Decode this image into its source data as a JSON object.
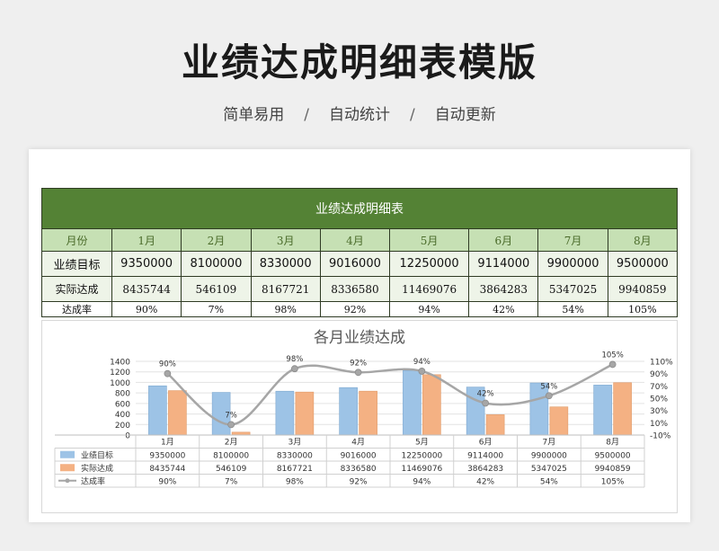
{
  "header": {
    "title": "业绩达成明细表模版",
    "features": [
      "简单易用",
      "自动统计",
      "自动更新"
    ],
    "separator": "/"
  },
  "table": {
    "title": "业绩达成明细表",
    "col_header_label": "月份",
    "months": [
      "1月",
      "2月",
      "3月",
      "4月",
      "5月",
      "6月",
      "7月",
      "8月"
    ],
    "rows": [
      {
        "label": "业绩目标",
        "values": [
          "9350000",
          "8100000",
          "8330000",
          "9016000",
          "12250000",
          "9114000",
          "9900000",
          "9500000"
        ]
      },
      {
        "label": "实际达成",
        "values": [
          "8435744",
          "546109",
          "8167721",
          "8336580",
          "11469076",
          "3864283",
          "5347025",
          "9940859"
        ]
      },
      {
        "label": "达成率",
        "values": [
          "90%",
          "7%",
          "98%",
          "92%",
          "94%",
          "42%",
          "54%",
          "105%"
        ]
      }
    ]
  },
  "chart_data": {
    "type": "bar",
    "title": "各月业绩达成",
    "categories": [
      "1月",
      "2月",
      "3月",
      "4月",
      "5月",
      "6月",
      "7月",
      "8月"
    ],
    "series": [
      {
        "name": "业绩目标",
        "type": "bar",
        "color": "#9dc3e6",
        "values": [
          935,
          810,
          833,
          901.6,
          1225,
          911.4,
          990,
          950
        ]
      },
      {
        "name": "实际达成",
        "type": "bar",
        "color": "#f4b183",
        "values": [
          843.6,
          54.6,
          816.8,
          833.7,
          1146.9,
          386.4,
          534.7,
          994.1
        ]
      },
      {
        "name": "达成率",
        "type": "line",
        "axis": "right",
        "color": "#a6a6a6",
        "values": [
          90,
          7,
          98,
          92,
          94,
          42,
          54,
          105
        ]
      }
    ],
    "y_left": {
      "min": 0,
      "max": 1400,
      "ticks": [
        "0",
        "200",
        "400",
        "600",
        "800",
        "1000",
        "1200",
        "1400"
      ]
    },
    "y_right": {
      "min": -10,
      "max": 110,
      "ticks": [
        "-10%",
        "10%",
        "30%",
        "50%",
        "70%",
        "90%",
        "110%"
      ]
    },
    "point_labels": [
      "90%",
      "7%",
      "98%",
      "92%",
      "94%",
      "42%",
      "54%",
      "105%"
    ],
    "data_table": {
      "rows": [
        {
          "label": "业绩目标",
          "values": [
            "9350000",
            "8100000",
            "8330000",
            "9016000",
            "12250000",
            "9114000",
            "9900000",
            "9500000"
          ]
        },
        {
          "label": "实际达成",
          "values": [
            "8435744",
            "546109",
            "8167721",
            "8336580",
            "11469076",
            "3864283",
            "5347025",
            "9940859"
          ]
        },
        {
          "label": "达成率",
          "values": [
            "90%",
            "7%",
            "98%",
            "92%",
            "94%",
            "42%",
            "54%",
            "105%"
          ]
        }
      ]
    },
    "grid": true
  }
}
